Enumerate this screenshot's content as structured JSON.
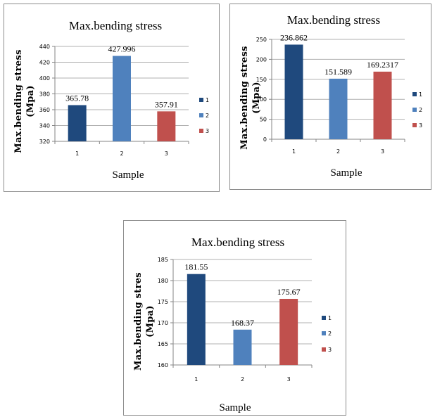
{
  "chart_data": [
    {
      "type": "bar",
      "title": "Max.bending stress",
      "xlabel": "Sample",
      "ylabel_lines": [
        "Max.bending stress",
        "(Mpa)"
      ],
      "categories": [
        "1",
        "2",
        "3"
      ],
      "values": [
        365.78,
        427.996,
        357.91
      ],
      "value_labels": [
        "365.78",
        "427.996",
        "357.91"
      ],
      "ylim": [
        320,
        440
      ],
      "yticks": [
        "320",
        "340",
        "360",
        "380",
        "400",
        "420",
        "440"
      ],
      "legend": [
        "1",
        "2",
        "3"
      ],
      "legend_position": "right",
      "grid": true,
      "colors": [
        "#1f497d",
        "#4f81bd",
        "#c0504d"
      ]
    },
    {
      "type": "bar",
      "title": "Max.bending stress",
      "xlabel": "Sample",
      "ylabel_lines": [
        "Max.bending stress",
        "(Mpa)"
      ],
      "categories": [
        "1",
        "2",
        "3"
      ],
      "values": [
        236.862,
        151.589,
        169.2317
      ],
      "value_labels": [
        "236.862",
        "151.589",
        "169.2317"
      ],
      "ylim": [
        0,
        250
      ],
      "yticks": [
        "0",
        "50",
        "100",
        "150",
        "200",
        "250"
      ],
      "legend": [
        "1",
        "2",
        "3"
      ],
      "legend_position": "right",
      "grid": true,
      "colors": [
        "#1f497d",
        "#4f81bd",
        "#c0504d"
      ]
    },
    {
      "type": "bar",
      "title": "Max.bending stress",
      "xlabel": "Sample",
      "ylabel_lines": [
        "Max.bending stres",
        "(Mpa)"
      ],
      "categories": [
        "1",
        "2",
        "3"
      ],
      "values": [
        181.55,
        168.37,
        175.67
      ],
      "value_labels": [
        "181.55",
        "168.37",
        "175.67"
      ],
      "ylim": [
        160,
        185
      ],
      "yticks": [
        "160",
        "165",
        "170",
        "175",
        "180",
        "185"
      ],
      "legend": [
        "1",
        "2",
        "3"
      ],
      "legend_position": "right",
      "grid": true,
      "colors": [
        "#1f497d",
        "#4f81bd",
        "#c0504d"
      ]
    }
  ]
}
